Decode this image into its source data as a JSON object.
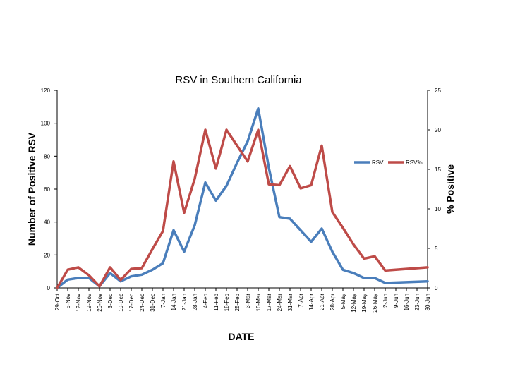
{
  "chart_data": {
    "type": "line",
    "title": "RSV in Southern California",
    "xlabel": "DATE",
    "ylabel": "Number of Positive RSV",
    "y2label": "% Positive",
    "ylim": [
      0,
      120
    ],
    "y2lim": [
      0,
      25
    ],
    "yticks": [
      0,
      20,
      40,
      60,
      80,
      100,
      120
    ],
    "y2ticks": [
      0,
      5,
      10,
      15,
      20,
      25
    ],
    "grid": false,
    "legend_position": "right",
    "categories": [
      "29-Oct",
      "5-Nov",
      "12-Nov",
      "19-Nov",
      "26-Nov",
      "3-Dec",
      "10-Dec",
      "17-Dec",
      "24-Dec",
      "31-Dec",
      "7-Jan",
      "14-Jan",
      "21-Jan",
      "28-Jan",
      "4-Feb",
      "11-Feb",
      "18-Feb",
      "25-Feb",
      "3-Mar",
      "10-Mar",
      "17-Mar",
      "24-Mar",
      "31-Mar",
      "7-Apr",
      "14-Apr",
      "21-Apr",
      "28-Apr",
      "5-May",
      "12-May",
      "19-May",
      "26-May",
      "2-Jun",
      "9-Jun",
      "16-Jun",
      "23-Jun",
      "30-Jun"
    ],
    "series": [
      {
        "name": "RSV",
        "axis": "left",
        "color": "#4a7ebb",
        "values": [
          0,
          5,
          6,
          6,
          1,
          9,
          4,
          7,
          8,
          11,
          15,
          35,
          22,
          38,
          64,
          53,
          62,
          76,
          89,
          109,
          73,
          43,
          42,
          35,
          28,
          36,
          22,
          11,
          9,
          6,
          6,
          3,
          null,
          null,
          null,
          4
        ]
      },
      {
        "name": "RSV%",
        "axis": "right",
        "color": "#be4b48",
        "values": [
          0,
          2.3,
          2.6,
          1.6,
          0.2,
          2.6,
          1.0,
          2.4,
          2.5,
          4.9,
          7.2,
          16.0,
          9.5,
          13.8,
          20.0,
          15.1,
          20.0,
          18.0,
          16.0,
          20.0,
          13.1,
          13.0,
          15.4,
          12.6,
          13.0,
          18.0,
          9.6,
          7.6,
          5.5,
          3.7,
          4.0,
          2.2,
          null,
          null,
          null,
          2.6
        ]
      }
    ]
  }
}
